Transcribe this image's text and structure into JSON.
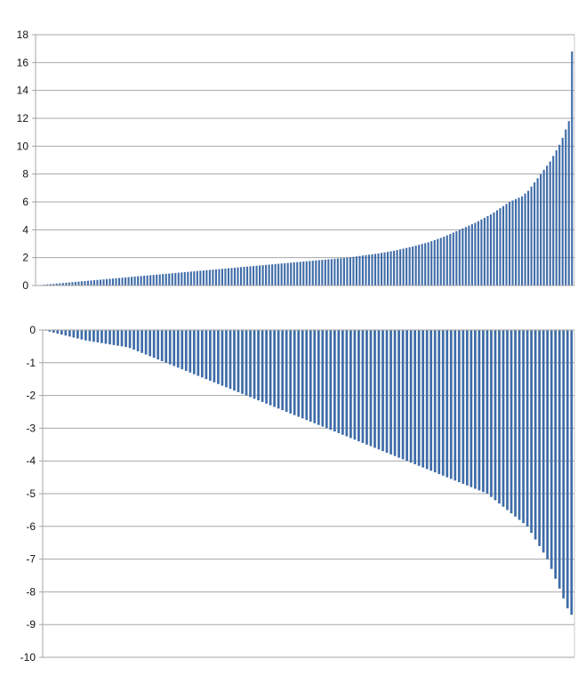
{
  "colors": {
    "bar": "#3f6ca8",
    "grid": "#a6a6a6",
    "axis": "#a6a6a6",
    "plot_border": "#c8c8c8"
  },
  "chart_data": [
    {
      "type": "bar",
      "title": "",
      "xlabel": "",
      "ylabel": "",
      "ylim": [
        0,
        18
      ],
      "yticks": [
        "0",
        "2",
        "4",
        "6",
        "8",
        "10",
        "12",
        "14",
        "16",
        "18"
      ],
      "ytick_values": [
        0,
        2,
        4,
        6,
        8,
        10,
        12,
        14,
        16,
        18
      ],
      "grid": true,
      "legend": "none",
      "values": [
        0.02,
        0.04,
        0.06,
        0.08,
        0.1,
        0.12,
        0.14,
        0.16,
        0.18,
        0.2,
        0.22,
        0.24,
        0.26,
        0.28,
        0.3,
        0.32,
        0.34,
        0.36,
        0.38,
        0.4,
        0.42,
        0.44,
        0.46,
        0.48,
        0.5,
        0.52,
        0.54,
        0.56,
        0.58,
        0.6,
        0.62,
        0.64,
        0.66,
        0.68,
        0.7,
        0.72,
        0.74,
        0.76,
        0.78,
        0.8,
        0.82,
        0.84,
        0.86,
        0.88,
        0.9,
        0.92,
        0.94,
        0.96,
        0.98,
        1.0,
        1.02,
        1.04,
        1.06,
        1.08,
        1.1,
        1.12,
        1.14,
        1.16,
        1.18,
        1.2,
        1.22,
        1.24,
        1.26,
        1.28,
        1.3,
        1.32,
        1.34,
        1.36,
        1.38,
        1.4,
        1.42,
        1.44,
        1.46,
        1.48,
        1.5,
        1.52,
        1.54,
        1.56,
        1.58,
        1.6,
        1.62,
        1.64,
        1.66,
        1.68,
        1.7,
        1.72,
        1.74,
        1.76,
        1.78,
        1.8,
        1.82,
        1.84,
        1.86,
        1.88,
        1.9,
        1.92,
        1.94,
        1.96,
        1.98,
        2.0,
        2.03,
        2.06,
        2.09,
        2.12,
        2.15,
        2.18,
        2.21,
        2.24,
        2.27,
        2.3,
        2.34,
        2.38,
        2.42,
        2.46,
        2.5,
        2.55,
        2.6,
        2.65,
        2.7,
        2.75,
        2.8,
        2.86,
        2.92,
        2.98,
        3.04,
        3.1,
        3.18,
        3.26,
        3.34,
        3.42,
        3.5,
        3.6,
        3.7,
        3.8,
        3.9,
        4.0,
        4.1,
        4.2,
        4.3,
        4.4,
        4.5,
        4.62,
        4.74,
        4.86,
        4.98,
        5.1,
        5.25,
        5.4,
        5.55,
        5.7,
        5.85,
        6.0,
        6.1,
        6.2,
        6.3,
        6.4,
        6.6,
        6.8,
        7.1,
        7.4,
        7.7,
        8.0,
        8.3,
        8.6,
        8.9,
        9.3,
        9.7,
        10.1,
        10.6,
        11.2,
        11.8,
        16.8
      ]
    },
    {
      "type": "bar",
      "title": "",
      "xlabel": "",
      "ylabel": "",
      "ylim": [
        -10,
        0
      ],
      "yticks": [
        "0",
        "-1",
        "-2",
        "-3",
        "-4",
        "-5",
        "-6",
        "-7",
        "-8",
        "-9",
        "-10"
      ],
      "ytick_values": [
        0,
        -1,
        -2,
        -3,
        -4,
        -5,
        -6,
        -7,
        -8,
        -9,
        -10
      ],
      "grid": true,
      "legend": "none",
      "values": [
        -0.02,
        -0.05,
        -0.08,
        -0.11,
        -0.14,
        -0.17,
        -0.2,
        -0.23,
        -0.26,
        -0.29,
        -0.32,
        -0.34,
        -0.36,
        -0.38,
        -0.4,
        -0.42,
        -0.44,
        -0.46,
        -0.48,
        -0.5,
        -0.52,
        -0.55,
        -0.6,
        -0.65,
        -0.7,
        -0.75,
        -0.8,
        -0.85,
        -0.9,
        -0.95,
        -1.0,
        -1.05,
        -1.1,
        -1.15,
        -1.2,
        -1.25,
        -1.3,
        -1.35,
        -1.4,
        -1.45,
        -1.5,
        -1.55,
        -1.6,
        -1.65,
        -1.7,
        -1.75,
        -1.8,
        -1.85,
        -1.9,
        -1.95,
        -2.0,
        -2.05,
        -2.1,
        -2.15,
        -2.2,
        -2.25,
        -2.3,
        -2.35,
        -2.4,
        -2.45,
        -2.5,
        -2.55,
        -2.6,
        -2.65,
        -2.7,
        -2.75,
        -2.8,
        -2.85,
        -2.9,
        -2.95,
        -3.0,
        -3.05,
        -3.1,
        -3.15,
        -3.2,
        -3.25,
        -3.3,
        -3.35,
        -3.4,
        -3.45,
        -3.5,
        -3.55,
        -3.6,
        -3.65,
        -3.7,
        -3.75,
        -3.8,
        -3.85,
        -3.9,
        -3.95,
        -4.0,
        -4.05,
        -4.1,
        -4.15,
        -4.2,
        -4.25,
        -4.3,
        -4.35,
        -4.4,
        -4.45,
        -4.5,
        -4.55,
        -4.6,
        -4.65,
        -4.7,
        -4.75,
        -4.8,
        -4.85,
        -4.9,
        -4.95,
        -5.0,
        -5.1,
        -5.2,
        -5.3,
        -5.4,
        -5.5,
        -5.6,
        -5.7,
        -5.8,
        -5.9,
        -6.0,
        -6.2,
        -6.4,
        -6.6,
        -6.8,
        -7.0,
        -7.3,
        -7.6,
        -7.9,
        -8.2,
        -8.5,
        -8.7
      ]
    }
  ]
}
